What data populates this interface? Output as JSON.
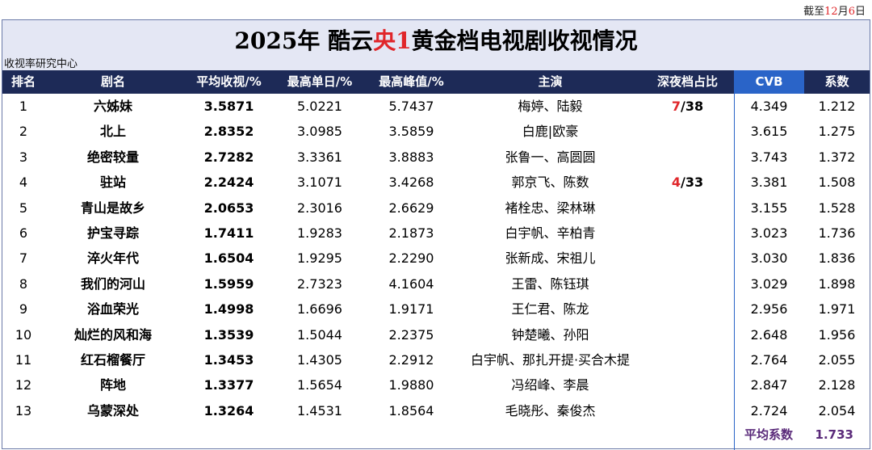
{
  "date_note": {
    "prefix": "截至",
    "month": "12",
    "mid": "月",
    "day": "6",
    "suffix": "日"
  },
  "title": {
    "part1": "2025年 酷云",
    "red1": "央1",
    "part2": "黄金档电视剧收视情况"
  },
  "subtitle": "收视率研究中心",
  "headers": {
    "rank": "排名",
    "name": "剧名",
    "avg": "平均收视/%",
    "max": "最高单日/%",
    "peak": "最高峰值/%",
    "cast": "主演",
    "night": "深夜档占比",
    "cvb": "CVB",
    "coef": "系数"
  },
  "colors": {
    "header_bg": "#1d2a57",
    "cvb_header_bg": "#2a64c8",
    "accent_red": "#e0262a",
    "title_bg": "#e4e7f4",
    "footer_text": "#5a2a7a"
  },
  "rows": [
    {
      "rank": "1",
      "name": "六姊妹",
      "avg": "3.5871",
      "max": "5.0221",
      "peak": "5.7437",
      "cast": "梅婷、陆毅",
      "night_red": "7",
      "night_rest": "/38",
      "cvb": "4.349",
      "coef": "1.212"
    },
    {
      "rank": "2",
      "name": "北上",
      "avg": "2.8352",
      "max": "3.0985",
      "peak": "3.5859",
      "cast": "白鹿|欧豪",
      "night_red": "",
      "night_rest": "",
      "cvb": "3.615",
      "coef": "1.275"
    },
    {
      "rank": "3",
      "name": "绝密较量",
      "avg": "2.7282",
      "max": "3.3361",
      "peak": "3.8883",
      "cast": "张鲁一、高圆圆",
      "night_red": "",
      "night_rest": "",
      "cvb": "3.743",
      "coef": "1.372"
    },
    {
      "rank": "4",
      "name": "驻站",
      "avg": "2.2424",
      "max": "3.1071",
      "peak": "3.4268",
      "cast": "郭京飞、陈数",
      "night_red": "4",
      "night_rest": "/33",
      "cvb": "3.381",
      "coef": "1.508"
    },
    {
      "rank": "5",
      "name": "青山是故乡",
      "avg": "2.0653",
      "max": "2.3016",
      "peak": "2.6629",
      "cast": "褚栓忠、梁林琳",
      "night_red": "",
      "night_rest": "",
      "cvb": "3.155",
      "coef": "1.528"
    },
    {
      "rank": "6",
      "name": "护宝寻踪",
      "avg": "1.7411",
      "max": "1.9283",
      "peak": "2.1873",
      "cast": "白宇帆、辛柏青",
      "night_red": "",
      "night_rest": "",
      "cvb": "3.023",
      "coef": "1.736"
    },
    {
      "rank": "7",
      "name": "淬火年代",
      "avg": "1.6504",
      "max": "1.9295",
      "peak": "2.2290",
      "cast": "张新成、宋祖儿",
      "night_red": "",
      "night_rest": "",
      "cvb": "3.030",
      "coef": "1.836"
    },
    {
      "rank": "8",
      "name": "我们的河山",
      "avg": "1.5959",
      "max": "2.7323",
      "peak": "4.1604",
      "cast": "王雷、陈钰琪",
      "night_red": "",
      "night_rest": "",
      "cvb": "3.029",
      "coef": "1.898"
    },
    {
      "rank": "9",
      "name": "浴血荣光",
      "avg": "1.4998",
      "max": "1.6696",
      "peak": "1.9171",
      "cast": "王仁君、陈龙",
      "night_red": "",
      "night_rest": "",
      "cvb": "2.956",
      "coef": "1.971"
    },
    {
      "rank": "10",
      "name": "灿烂的风和海",
      "avg": "1.3539",
      "max": "1.5044",
      "peak": "2.2375",
      "cast": "钟楚曦、孙阳",
      "night_red": "",
      "night_rest": "",
      "cvb": "2.648",
      "coef": "1.956"
    },
    {
      "rank": "11",
      "name": "红石榴餐厅",
      "avg": "1.3453",
      "max": "1.4305",
      "peak": "2.2912",
      "cast": "白宇帆、那扎开提·买合木提",
      "night_red": "",
      "night_rest": "",
      "cvb": "2.764",
      "coef": "2.055"
    },
    {
      "rank": "12",
      "name": "阵地",
      "avg": "1.3377",
      "max": "1.5654",
      "peak": "1.9880",
      "cast": "冯绍峰、李晨",
      "night_red": "",
      "night_rest": "",
      "cvb": "2.847",
      "coef": "2.128"
    },
    {
      "rank": "13",
      "name": "乌蒙深处",
      "avg": "1.3264",
      "max": "1.4531",
      "peak": "1.8564",
      "cast": "毛晓彤、秦俊杰",
      "night_red": "",
      "night_rest": "",
      "cvb": "2.724",
      "coef": "2.054"
    }
  ],
  "footer": {
    "label": "平均系数",
    "value": "1.733"
  }
}
